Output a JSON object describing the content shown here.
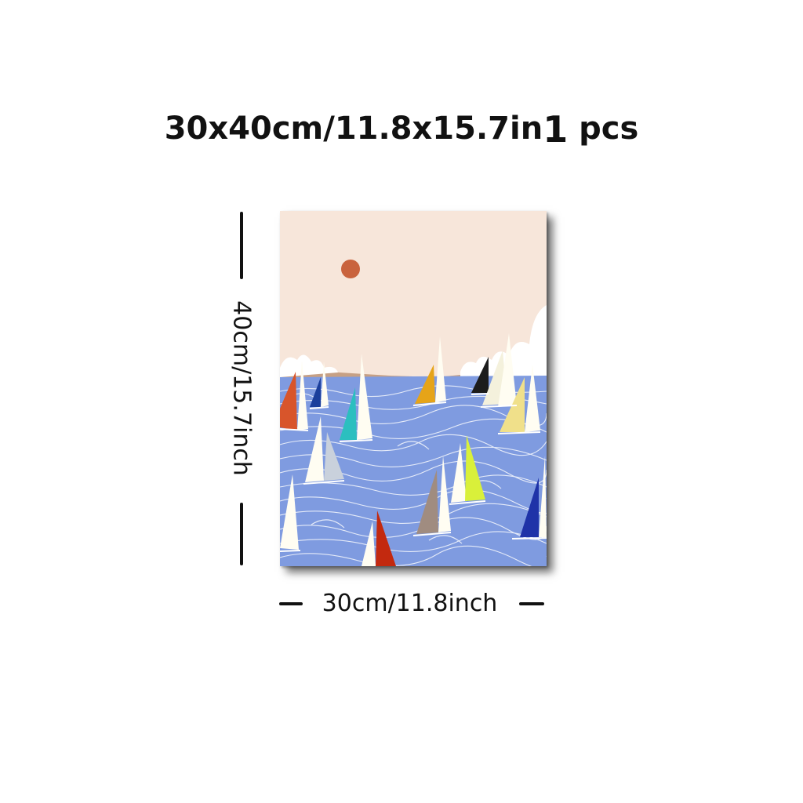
{
  "header": {
    "size_text": "30x40cm/11.8x15.7in",
    "quantity": "1",
    "quantity_unit": "pcs"
  },
  "dimensions": {
    "height_label": "40cm/15.7inch",
    "width_label": "30cm/11.8inch"
  },
  "artwork": {
    "sky_color": "#f7e6da",
    "sun_color": "#c9633d",
    "sea_color": "#7f9be0",
    "sail_colors": [
      "#d8552b",
      "#1b3f9c",
      "#2bbfbf",
      "#e6a418",
      "#1c1c1c",
      "#f0e08a",
      "#c9d1dc",
      "#d9f03a",
      "#a08c80",
      "#c3290f",
      "#1f33a8",
      "#fffdf2"
    ]
  }
}
